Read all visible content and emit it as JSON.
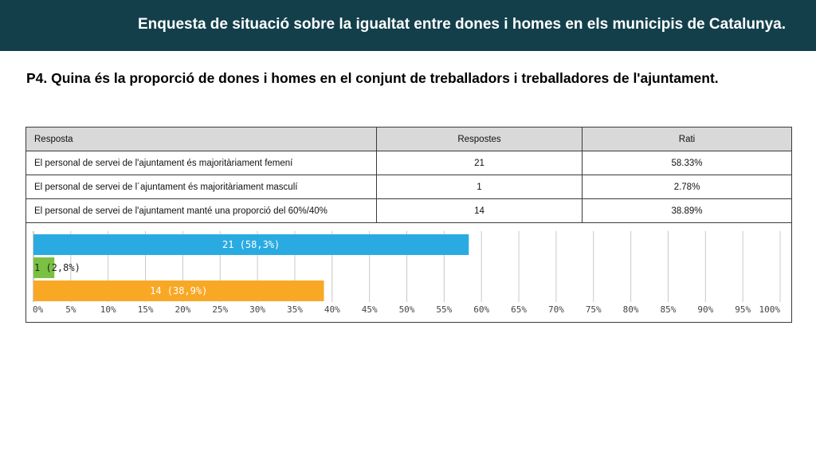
{
  "header": {
    "title": "Enquesta de situació sobre la  igualtat entre dones i homes en els municipis de Catalunya."
  },
  "question": "P4. Quina és la proporció de dones i homes en el conjunt de treballadors i treballadores de l'ajuntament.",
  "table": {
    "headers": [
      "Resposta",
      "Respostes",
      "Rati"
    ],
    "rows": [
      [
        "El personal de servei de l'ajuntament és majoritàriament femení",
        "21",
        "58.33%"
      ],
      [
        "El personal de servei de l´ajuntament és majoritàriament masculí",
        "1",
        "2.78%"
      ],
      [
        "El personal de servei de l'ajuntament manté una proporció del 60%/40%",
        "14",
        "38.89%"
      ]
    ]
  },
  "chart_data": {
    "type": "bar",
    "orientation": "horizontal",
    "categories": [
      "El personal de servei de l'ajuntament és majoritàriament femení",
      "El personal de servei de l´ajuntament és majoritàriament masculí",
      "El personal de servei de l'ajuntament manté una proporció del 60%/40%"
    ],
    "values": [
      58.3,
      2.8,
      38.9
    ],
    "data_labels": [
      "21 (58,3%)",
      "1 (2,8%)",
      "14 (38,9%)"
    ],
    "colors": [
      "#29abe2",
      "#7ac143",
      "#f9a825"
    ],
    "xlim": [
      0,
      100
    ],
    "xticks": [
      "0%",
      "5%",
      "10%",
      "15%",
      "20%",
      "25%",
      "30%",
      "35%",
      "40%",
      "45%",
      "50%",
      "55%",
      "60%",
      "65%",
      "70%",
      "75%",
      "80%",
      "85%",
      "90%",
      "95%",
      "100%"
    ],
    "grid": true
  }
}
